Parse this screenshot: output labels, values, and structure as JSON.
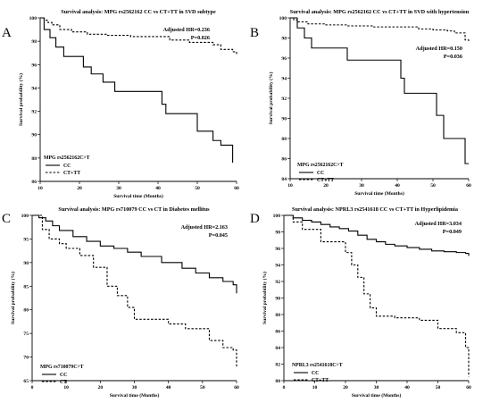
{
  "chart_data": [
    {
      "panel": "A",
      "type": "line",
      "title": "Survival analysis: MPG rs2562162 CC vs CT+TT in SVD subtype",
      "annotation_lines": [
        "Adjusted HR=0.236",
        "P=0.026"
      ],
      "xlabel": "Survival time (Months)",
      "ylabel": "Survival probability (%)",
      "xlim": [
        10,
        60
      ],
      "ylim": [
        86,
        100
      ],
      "xticks": [
        10,
        20,
        30,
        40,
        50,
        60
      ],
      "yticks": [
        86,
        88,
        90,
        92,
        94,
        96,
        98,
        100
      ],
      "legend_title": "MPG rs2562162C>T",
      "legend_position": "bottom-left",
      "series": [
        {
          "name": "CC",
          "style": "solid",
          "x": [
            10,
            11,
            12.5,
            14,
            16,
            21,
            23,
            26,
            29,
            33,
            41,
            42,
            50,
            54,
            56,
            59
          ],
          "y": [
            100,
            99,
            98.3,
            97.5,
            96.7,
            95.8,
            95.2,
            94.5,
            93.7,
            93.7,
            92.6,
            91.8,
            90.3,
            89.5,
            89.1,
            87.6
          ]
        },
        {
          "name": "CT+TT",
          "style": "dashed",
          "x": [
            10,
            11,
            12,
            13,
            15,
            18,
            22,
            27,
            33,
            43,
            48,
            54,
            56,
            59,
            60
          ],
          "y": [
            100,
            99.8,
            99.6,
            99.4,
            99.0,
            98.8,
            98.6,
            98.5,
            98.4,
            98.1,
            97.9,
            97.7,
            97.3,
            97.1,
            96.9
          ]
        }
      ]
    },
    {
      "panel": "B",
      "type": "line",
      "title": "Survival analysis: MPG rs2562162 CC vs CT+TT in SVD with hypertension",
      "annotation_lines": [
        "Adjusted HR=0.150",
        "P=0.036"
      ],
      "xlabel": "Survival time (Months)",
      "ylabel": "Survival probability (%)",
      "xlim": [
        10,
        60
      ],
      "ylim": [
        84,
        100
      ],
      "xticks": [
        10,
        20,
        30,
        40,
        50,
        60
      ],
      "yticks": [
        84,
        86,
        88,
        90,
        92,
        94,
        96,
        98,
        100
      ],
      "legend_title": "MPG rs2562162C>T",
      "legend_position": "bottom-left",
      "series": [
        {
          "name": "CC",
          "style": "solid",
          "x": [
            10,
            12,
            14,
            16,
            26,
            40,
            41,
            42,
            51,
            53,
            59,
            60
          ],
          "y": [
            100,
            99,
            98,
            97,
            95.8,
            95.8,
            94,
            92.5,
            90.3,
            88,
            85.5,
            85.5
          ]
        },
        {
          "name": "CT+TT",
          "style": "dashed",
          "x": [
            10,
            11,
            12,
            15,
            20,
            26,
            33,
            46,
            50,
            54,
            56,
            59,
            60
          ],
          "y": [
            100,
            99.8,
            99.6,
            99.4,
            99.3,
            99.2,
            99.1,
            98.9,
            98.8,
            98.7,
            98.5,
            97.8,
            97.7
          ]
        }
      ]
    },
    {
      "panel": "C",
      "type": "line",
      "title": "Survival analysis: MPG rs710079 CC vs CT in Diabetes mellitus",
      "annotation_lines": [
        "Adjusted HR=2.163",
        "P=0.045"
      ],
      "xlabel": "Survival time (Months)",
      "ylabel": "Survival probability (%)",
      "xlim": [
        0,
        60
      ],
      "ylim": [
        65,
        100
      ],
      "xticks": [
        0,
        10,
        20,
        30,
        40,
        50,
        60
      ],
      "yticks": [
        65,
        70,
        75,
        80,
        85,
        90,
        95,
        100
      ],
      "legend_title": "MPG rs710079C>T",
      "legend_position": "bottom-left",
      "series": [
        {
          "name": "CC",
          "style": "solid",
          "x": [
            0,
            2,
            4,
            6,
            8,
            12,
            16,
            20,
            24,
            28,
            32,
            38,
            44,
            48,
            52,
            56,
            59,
            60
          ],
          "y": [
            100,
            99.5,
            98.8,
            97.8,
            96.8,
            95.5,
            94.5,
            93.5,
            93,
            92.2,
            91.3,
            90,
            88.8,
            87.8,
            86.8,
            86,
            85.3,
            83.5
          ]
        },
        {
          "name": "CT",
          "style": "dashed",
          "x": [
            0,
            3,
            5,
            8,
            10,
            14,
            18,
            22,
            25,
            28,
            30,
            40,
            45,
            52,
            56,
            59,
            60
          ],
          "y": [
            100,
            97,
            95,
            94,
            93,
            91.5,
            89,
            85,
            83,
            80.5,
            78,
            77,
            76,
            73.5,
            72,
            71.5,
            68
          ]
        }
      ]
    },
    {
      "panel": "D",
      "type": "line",
      "title": "Survival analysis: NPRL3 rs2541618 CC vs CT+TT in Hyperlipidemia",
      "annotation_lines": [
        "Adjusted HR=3.034",
        "P=0.049"
      ],
      "xlabel": "Survival time (Months)",
      "ylabel": "Survival probability (%)",
      "xlim": [
        0,
        60
      ],
      "ylim": [
        80,
        100
      ],
      "xticks": [
        0,
        10,
        20,
        30,
        40,
        50,
        60
      ],
      "yticks": [
        80,
        82,
        84,
        86,
        88,
        90,
        92,
        94,
        96,
        98,
        100
      ],
      "legend_title": "NPRL3 rs2541618C>T",
      "legend_position": "bottom-left",
      "series": [
        {
          "name": "CC",
          "style": "solid",
          "x": [
            0,
            3,
            6,
            9,
            12,
            15,
            18,
            21,
            24,
            27,
            30,
            33,
            36,
            40,
            44,
            48,
            52,
            56,
            59,
            60
          ],
          "y": [
            100,
            99.7,
            99.4,
            99.2,
            98.9,
            98.6,
            98.4,
            98.1,
            97.6,
            97.1,
            96.8,
            96.5,
            96.3,
            96.1,
            95.9,
            95.7,
            95.6,
            95.5,
            95.4,
            95.1
          ]
        },
        {
          "name": "CT+TT",
          "style": "dashed",
          "x": [
            0,
            3,
            6,
            12,
            20,
            22,
            24,
            26,
            28,
            30,
            36,
            44,
            50,
            56,
            59,
            60
          ],
          "y": [
            100,
            99.2,
            98.3,
            96.8,
            95.5,
            94,
            92.5,
            90.5,
            88.8,
            87.8,
            87.6,
            87.3,
            86.3,
            85.8,
            84,
            80.5
          ]
        }
      ]
    }
  ]
}
